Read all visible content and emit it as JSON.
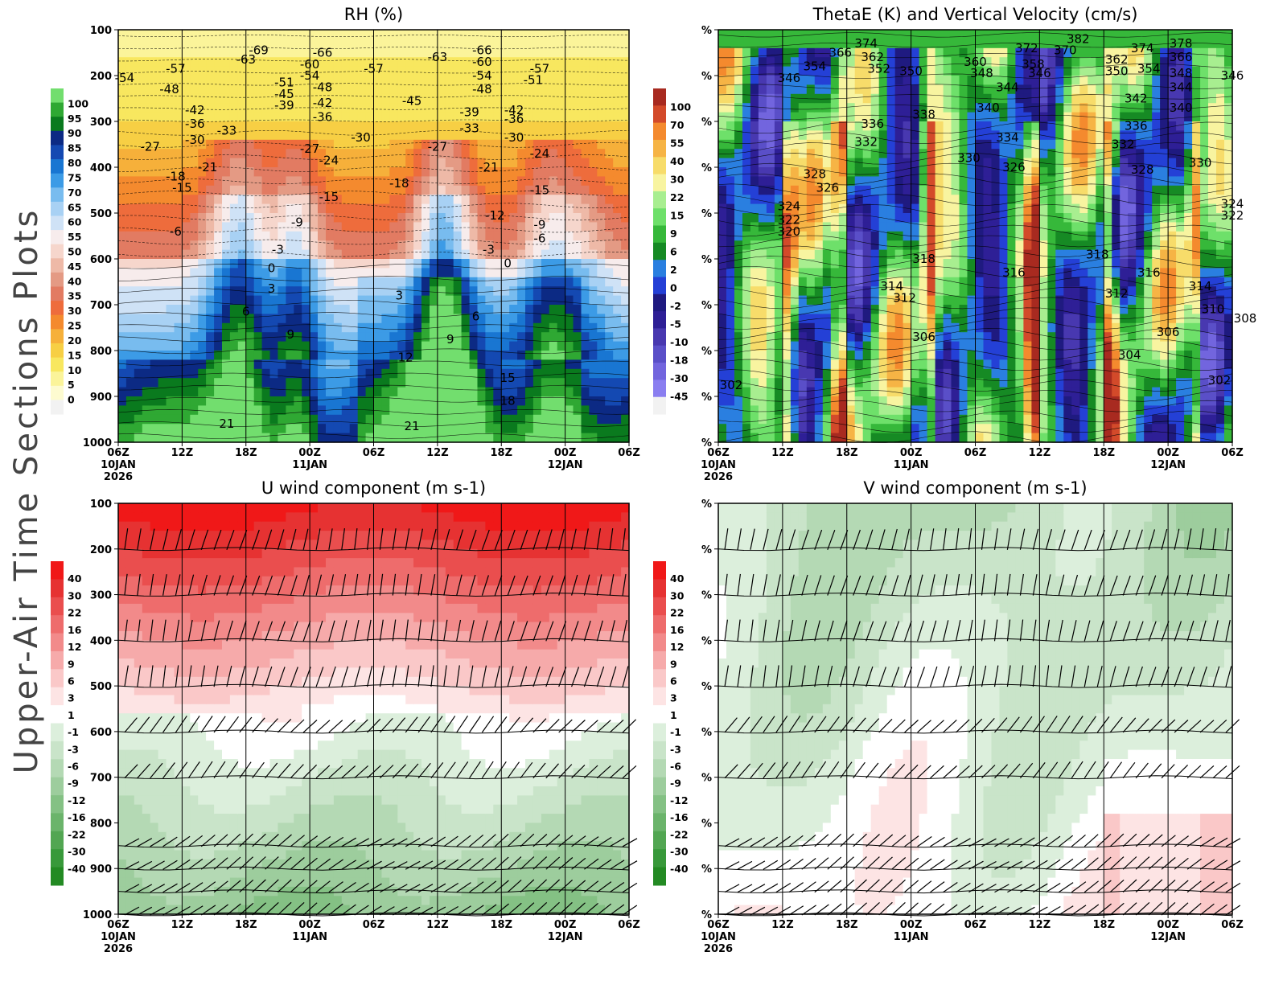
{
  "figure": {
    "side_title": "Upper-Air Time Sections Plots"
  },
  "colors": {
    "rh_scale": [
      "#f2f2f2",
      "#fdfbd0",
      "#fbf49a",
      "#f8e75f",
      "#f7cf44",
      "#f6b03a",
      "#f48a2e",
      "#ee6c3c",
      "#e27b62",
      "#e49a84",
      "#eeb9a7",
      "#f6d6cc",
      "#f7ecec",
      "#cfe2f6",
      "#a8d1f4",
      "#78bcef",
      "#3c9be6",
      "#1976d2",
      "#1449b2",
      "#0c2a84",
      "#0a7a1e",
      "#2fa833",
      "#72de6e"
    ],
    "thetae_scale": [
      "#f2f2f2",
      "#8a7ef0",
      "#7265de",
      "#5a4fc8",
      "#4838b0",
      "#2e1f96",
      "#1f1a80",
      "#2440d6",
      "#2a7fe0",
      "#168a24",
      "#36b83a",
      "#6ee06a",
      "#a8ee90",
      "#f8f4a0",
      "#f7dc6a",
      "#f6b445",
      "#f48a2e",
      "#d34a2a",
      "#a82a20"
    ],
    "wind_scale": [
      "#238a23",
      "#38993a",
      "#52a652",
      "#6bb46b",
      "#84c184",
      "#9dcd9d",
      "#b4d9b4",
      "#c9e4c9",
      "#dcefdc",
      "#ffffff",
      "#fde4e4",
      "#fac8c8",
      "#f6aaaa",
      "#f28a8a",
      "#ee6c6c",
      "#ea4e4e",
      "#e63232",
      "#f01818"
    ]
  },
  "chart_data": [
    {
      "type": "heatmap",
      "title": "RH (%)",
      "xlabel": "",
      "ylabel": "",
      "x_ticks": [
        "06Z",
        "12Z",
        "18Z",
        "00Z",
        "06Z",
        "12Z",
        "18Z",
        "00Z",
        "06Z"
      ],
      "x_date_labels": [
        [
          "10JAN",
          "2026"
        ],
        [],
        [],
        [
          "11JAN"
        ],
        [],
        [],
        [],
        [
          "12JAN"
        ],
        []
      ],
      "y_ticks": [
        "100",
        "200",
        "300",
        "400",
        "500",
        "600",
        "700",
        "800",
        "900",
        "1000"
      ],
      "ylim": [
        100,
        1000
      ],
      "colorbar_labels": [
        "100",
        "95",
        "90",
        "85",
        "80",
        "75",
        "70",
        "65",
        "60",
        "55",
        "50",
        "45",
        "40",
        "35",
        "30",
        "25",
        "20",
        "15",
        "10",
        "5",
        "0"
      ],
      "contour_labels": [
        {
          "text": "-69",
          "t": 1.1,
          "p": 145
        },
        {
          "text": "-63",
          "t": 1.0,
          "p": 165
        },
        {
          "text": "-66",
          "t": 1.6,
          "p": 150
        },
        {
          "text": "-60",
          "t": 1.5,
          "p": 175
        },
        {
          "text": "-54",
          "t": 1.5,
          "p": 200
        },
        {
          "text": "-57",
          "t": 2.0,
          "p": 185
        },
        {
          "text": "-63",
          "t": 2.5,
          "p": 160
        },
        {
          "text": "-66",
          "t": 2.85,
          "p": 145
        },
        {
          "text": "-60",
          "t": 2.85,
          "p": 170
        },
        {
          "text": "-54",
          "t": 2.85,
          "p": 200
        },
        {
          "text": "-48",
          "t": 2.85,
          "p": 230
        },
        {
          "text": "-51",
          "t": 3.25,
          "p": 210
        },
        {
          "text": "-57",
          "t": 3.3,
          "p": 185
        },
        {
          "text": "-54",
          "t": 0.05,
          "p": 205
        },
        {
          "text": "-57",
          "t": 0.45,
          "p": 185
        },
        {
          "text": "-48",
          "t": 0.4,
          "p": 230
        },
        {
          "text": "-42",
          "t": 0.6,
          "p": 275
        },
        {
          "text": "-36",
          "t": 0.6,
          "p": 305
        },
        {
          "text": "-30",
          "t": 0.6,
          "p": 340
        },
        {
          "text": "-33",
          "t": 0.85,
          "p": 320
        },
        {
          "text": "-27",
          "t": 0.25,
          "p": 355
        },
        {
          "text": "-21",
          "t": 0.7,
          "p": 400
        },
        {
          "text": "-18",
          "t": 0.45,
          "p": 420
        },
        {
          "text": "-15",
          "t": 0.5,
          "p": 445
        },
        {
          "text": "-6",
          "t": 0.45,
          "p": 540
        },
        {
          "text": "-51",
          "t": 1.3,
          "p": 215
        },
        {
          "text": "-45",
          "t": 1.3,
          "p": 240
        },
        {
          "text": "-39",
          "t": 1.3,
          "p": 265
        },
        {
          "text": "-48",
          "t": 1.6,
          "p": 225
        },
        {
          "text": "-42",
          "t": 1.6,
          "p": 260
        },
        {
          "text": "-36",
          "t": 1.6,
          "p": 290
        },
        {
          "text": "-30",
          "t": 1.9,
          "p": 335
        },
        {
          "text": "-27",
          "t": 1.5,
          "p": 360
        },
        {
          "text": "-24",
          "t": 1.65,
          "p": 385
        },
        {
          "text": "-15",
          "t": 1.65,
          "p": 465
        },
        {
          "text": "-9",
          "t": 1.4,
          "p": 520
        },
        {
          "text": "-3",
          "t": 1.25,
          "p": 580
        },
        {
          "text": "0",
          "t": 1.2,
          "p": 620
        },
        {
          "text": "-45",
          "t": 2.3,
          "p": 255
        },
        {
          "text": "-39",
          "t": 2.75,
          "p": 280
        },
        {
          "text": "-33",
          "t": 2.75,
          "p": 315
        },
        {
          "text": "-27",
          "t": 2.5,
          "p": 355
        },
        {
          "text": "-21",
          "t": 2.9,
          "p": 400
        },
        {
          "text": "-18",
          "t": 2.2,
          "p": 435
        },
        {
          "text": "-12",
          "t": 2.95,
          "p": 505
        },
        {
          "text": "-42",
          "t": 3.1,
          "p": 275
        },
        {
          "text": "-36",
          "t": 3.1,
          "p": 295
        },
        {
          "text": "-30",
          "t": 3.1,
          "p": 335
        },
        {
          "text": "-24",
          "t": 3.3,
          "p": 370
        },
        {
          "text": "-15",
          "t": 3.3,
          "p": 450
        },
        {
          "text": "-9",
          "t": 3.3,
          "p": 525
        },
        {
          "text": "-6",
          "t": 3.3,
          "p": 555
        },
        {
          "text": "-3",
          "t": 2.9,
          "p": 580
        },
        {
          "text": "0",
          "t": 3.05,
          "p": 610
        },
        {
          "text": "3",
          "t": 1.2,
          "p": 665
        },
        {
          "text": "3",
          "t": 2.2,
          "p": 680
        },
        {
          "text": "6",
          "t": 1.0,
          "p": 715
        },
        {
          "text": "6",
          "t": 2.8,
          "p": 725
        },
        {
          "text": "9",
          "t": 1.35,
          "p": 765
        },
        {
          "text": "9",
          "t": 2.6,
          "p": 775
        },
        {
          "text": "12",
          "t": 2.25,
          "p": 815
        },
        {
          "text": "15",
          "t": 3.05,
          "p": 860
        },
        {
          "text": "18",
          "t": 3.05,
          "p": 910
        },
        {
          "text": "21",
          "t": 0.85,
          "p": 960
        },
        {
          "text": "21",
          "t": 2.3,
          "p": 965
        }
      ]
    },
    {
      "type": "heatmap",
      "title": "ThetaE (K) and Vertical Velocity (cm/s)",
      "xlabel": "",
      "ylabel": "",
      "x_ticks": [
        "06Z",
        "12Z",
        "18Z",
        "00Z",
        "06Z",
        "12Z",
        "18Z",
        "00Z",
        "06Z"
      ],
      "x_date_labels": [
        [
          "10JAN",
          "2026"
        ],
        [],
        [],
        [
          "11JAN"
        ],
        [],
        [],
        [],
        [
          "12JAN"
        ],
        []
      ],
      "y_ticks": [
        "%",
        "%",
        "%",
        "%",
        "%",
        "%",
        "%",
        "%",
        "%",
        "%"
      ],
      "ylim": [
        100,
        1000
      ],
      "colorbar_labels": [
        "100",
        "70",
        "55",
        "40",
        "30",
        "22",
        "15",
        "9",
        "6",
        "2",
        "0",
        "-2",
        "-5",
        "-10",
        "-18",
        "-30",
        "-45"
      ],
      "contour_labels": [
        {
          "text": "374",
          "t": 1.15,
          "p": 130
        },
        {
          "text": "366",
          "t": 0.95,
          "p": 150
        },
        {
          "text": "362",
          "t": 1.2,
          "p": 160
        },
        {
          "text": "354",
          "t": 0.75,
          "p": 180
        },
        {
          "text": "352",
          "t": 1.25,
          "p": 185
        },
        {
          "text": "350",
          "t": 1.5,
          "p": 190
        },
        {
          "text": "346",
          "t": 0.55,
          "p": 205
        },
        {
          "text": "372",
          "t": 2.4,
          "p": 140
        },
        {
          "text": "382",
          "t": 2.8,
          "p": 120
        },
        {
          "text": "370",
          "t": 2.7,
          "p": 145
        },
        {
          "text": "360",
          "t": 2.0,
          "p": 170
        },
        {
          "text": "358",
          "t": 2.45,
          "p": 175
        },
        {
          "text": "348",
          "t": 2.05,
          "p": 195
        },
        {
          "text": "346",
          "t": 2.5,
          "p": 195
        },
        {
          "text": "362",
          "t": 3.1,
          "p": 165
        },
        {
          "text": "350",
          "t": 3.1,
          "p": 190
        },
        {
          "text": "374",
          "t": 3.3,
          "p": 140
        },
        {
          "text": "378",
          "t": 3.6,
          "p": 130
        },
        {
          "text": "366",
          "t": 3.6,
          "p": 160
        },
        {
          "text": "354",
          "t": 3.35,
          "p": 185
        },
        {
          "text": "348",
          "t": 3.6,
          "p": 195
        },
        {
          "text": "344",
          "t": 3.6,
          "p": 225
        },
        {
          "text": "346",
          "t": 4.0,
          "p": 200
        },
        {
          "text": "344",
          "t": 2.25,
          "p": 225
        },
        {
          "text": "340",
          "t": 2.1,
          "p": 270
        },
        {
          "text": "342",
          "t": 3.25,
          "p": 250
        },
        {
          "text": "340",
          "t": 3.6,
          "p": 270
        },
        {
          "text": "338",
          "t": 1.6,
          "p": 285
        },
        {
          "text": "336",
          "t": 1.2,
          "p": 305
        },
        {
          "text": "336",
          "t": 3.25,
          "p": 310
        },
        {
          "text": "334",
          "t": 2.25,
          "p": 335
        },
        {
          "text": "332",
          "t": 1.15,
          "p": 345
        },
        {
          "text": "332",
          "t": 3.15,
          "p": 350
        },
        {
          "text": "330",
          "t": 1.95,
          "p": 380
        },
        {
          "text": "330",
          "t": 3.75,
          "p": 390
        },
        {
          "text": "328",
          "t": 0.75,
          "p": 415
        },
        {
          "text": "328",
          "t": 3.3,
          "p": 405
        },
        {
          "text": "326",
          "t": 0.85,
          "p": 445
        },
        {
          "text": "326",
          "t": 2.3,
          "p": 400
        },
        {
          "text": "324",
          "t": 0.55,
          "p": 485
        },
        {
          "text": "324",
          "t": 4.0,
          "p": 480
        },
        {
          "text": "322",
          "t": 0.55,
          "p": 515
        },
        {
          "text": "322",
          "t": 4.0,
          "p": 505
        },
        {
          "text": "320",
          "t": 0.55,
          "p": 540
        },
        {
          "text": "318",
          "t": 1.6,
          "p": 600
        },
        {
          "text": "318",
          "t": 2.95,
          "p": 590
        },
        {
          "text": "316",
          "t": 2.3,
          "p": 630
        },
        {
          "text": "316",
          "t": 3.35,
          "p": 630
        },
        {
          "text": "314",
          "t": 1.35,
          "p": 660
        },
        {
          "text": "314",
          "t": 3.75,
          "p": 660
        },
        {
          "text": "312",
          "t": 1.45,
          "p": 685
        },
        {
          "text": "312",
          "t": 3.1,
          "p": 675
        },
        {
          "text": "310",
          "t": 3.85,
          "p": 710
        },
        {
          "text": "308",
          "t": 4.1,
          "p": 730
        },
        {
          "text": "306",
          "t": 1.6,
          "p": 770
        },
        {
          "text": "306",
          "t": 3.5,
          "p": 760
        },
        {
          "text": "304",
          "t": 3.2,
          "p": 810
        },
        {
          "text": "302",
          "t": 0.1,
          "p": 875
        },
        {
          "text": "302",
          "t": 3.9,
          "p": 865
        }
      ]
    },
    {
      "type": "heatmap",
      "title": "U wind component (m s-1)",
      "xlabel": "",
      "ylabel": "",
      "x_ticks": [
        "06Z",
        "12Z",
        "18Z",
        "00Z",
        "06Z",
        "12Z",
        "18Z",
        "00Z",
        "06Z"
      ],
      "x_date_labels": [
        [
          "10JAN",
          "2026"
        ],
        [],
        [],
        [
          "11JAN"
        ],
        [],
        [],
        [],
        [
          "12JAN"
        ],
        []
      ],
      "y_ticks": [
        "100",
        "200",
        "300",
        "400",
        "500",
        "600",
        "700",
        "800",
        "900",
        "1000"
      ],
      "ylim": [
        100,
        1000
      ],
      "colorbar_labels": [
        "40",
        "30",
        "22",
        "16",
        "12",
        "9",
        "6",
        "3",
        "1",
        "-1",
        "-3",
        "-6",
        "-9",
        "-12",
        "-16",
        "-22",
        "-30",
        "-40"
      ],
      "wind_barb_levels": [
        200,
        300,
        400,
        500,
        600,
        700,
        850,
        900,
        950,
        1000
      ]
    },
    {
      "type": "heatmap",
      "title": "V wind component (m s-1)",
      "xlabel": "",
      "ylabel": "",
      "x_ticks": [
        "06Z",
        "12Z",
        "18Z",
        "00Z",
        "06Z",
        "12Z",
        "18Z",
        "00Z",
        "06Z"
      ],
      "x_date_labels": [
        [
          "10JAN",
          "2026"
        ],
        [],
        [],
        [
          "11JAN"
        ],
        [],
        [],
        [],
        [
          "12JAN"
        ],
        []
      ],
      "y_ticks": [
        "%",
        "%",
        "%",
        "%",
        "%",
        "%",
        "%",
        "%",
        "%",
        "%"
      ],
      "ylim": [
        100,
        1000
      ],
      "colorbar_labels": [
        "40",
        "30",
        "22",
        "16",
        "12",
        "9",
        "6",
        "3",
        "1",
        "-1",
        "-3",
        "-6",
        "-9",
        "-12",
        "-16",
        "-22",
        "-30",
        "-40"
      ],
      "wind_barb_levels": [
        200,
        300,
        400,
        500,
        600,
        700,
        850,
        900,
        950,
        1000
      ]
    }
  ]
}
